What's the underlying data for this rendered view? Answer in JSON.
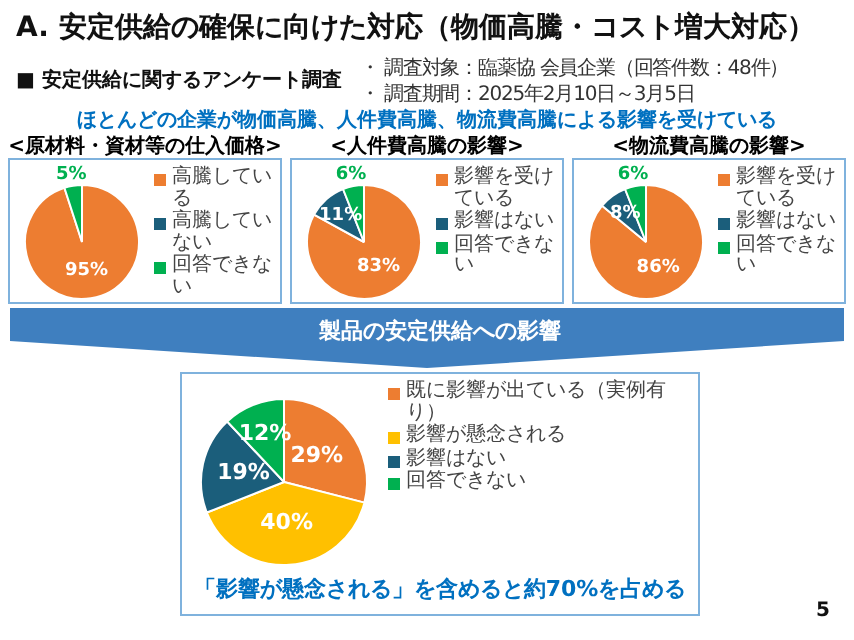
{
  "chart_data": [
    {
      "type": "pie",
      "title": "<原材料・資材等の仕入価格>",
      "categories": [
        "高騰している",
        "高騰していない",
        "回答できない"
      ],
      "values": [
        95,
        0,
        5
      ],
      "colors": [
        "#ed7d31",
        "#1b5e7b",
        "#00b050"
      ],
      "value_labels": [
        "95%",
        null,
        "5%"
      ],
      "legend": "right",
      "annotations": [
        "A.  安定供給の確保に向けた対応（物価高騰・コスト増大対応）",
        "■ 安定供給に関するアンケート調査",
        "・ 調査対象：臨薬協 会員企業（回答件数：48件）",
        "・ 調査期間：2025年2月10日～3月5日",
        "ほとんどの企業が物価高騰、人件費高騰、物流費高騰による影響を受けている"
      ]
    },
    {
      "type": "pie",
      "title": "<人件費高騰の影響>",
      "categories": [
        "影響を受けている",
        "影響はない",
        "回答できない"
      ],
      "values": [
        83,
        11,
        6
      ],
      "colors": [
        "#ed7d31",
        "#1b5e7b",
        "#00b050"
      ],
      "value_labels": [
        "83%",
        "11%",
        "6%"
      ],
      "legend": "right"
    },
    {
      "type": "pie",
      "title": "<物流費高騰の影響>",
      "categories": [
        "影響を受けている",
        "影響はない",
        "回答できない"
      ],
      "values": [
        86,
        8,
        6
      ],
      "colors": [
        "#ed7d31",
        "#1b5e7b",
        "#00b050"
      ],
      "value_labels": [
        "86%",
        "8%",
        "6%"
      ],
      "legend": "right"
    },
    {
      "type": "pie",
      "title": "製品の安定供給への影響",
      "categories": [
        "既に影響が出ている（実例有り）",
        "影響が懸念される",
        "影響はない",
        "回答できない"
      ],
      "values": [
        29,
        40,
        19,
        12
      ],
      "colors": [
        "#ed7d31",
        "#ffc000",
        "#1b5e7b",
        "#00b050"
      ],
      "value_labels": [
        "29%",
        "40%",
        "19%",
        "12%"
      ],
      "legend": "right",
      "annotations": [
        "「影響が懸念される」を含めると約70%を占める",
        "5"
      ]
    }
  ]
}
